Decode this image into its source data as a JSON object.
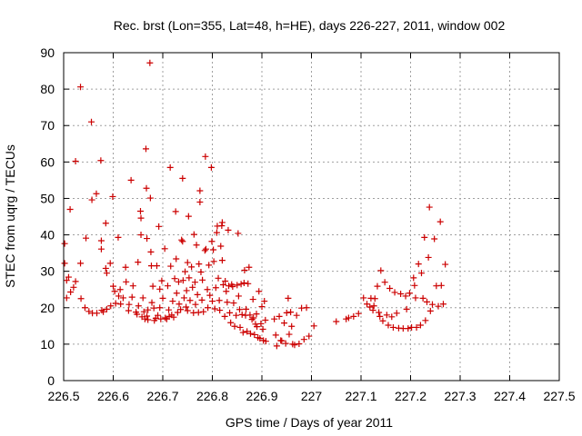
{
  "chart_data": {
    "type": "scatter",
    "title": "Rec. brst (Lon=355, Lat=48, h=HE), days 226-227, 2011, window 002",
    "xlabel": "GPS time / Days of year 2011",
    "ylabel": "STEC from uqrg / TECUs",
    "xlim": [
      226.5,
      227.5
    ],
    "ylim": [
      0,
      90
    ],
    "grid": true,
    "marker": "+",
    "color": "#cc0000",
    "xticks": [
      226.5,
      226.6,
      226.7,
      226.8,
      226.9,
      227.0,
      227.1,
      227.2,
      227.3,
      227.4,
      227.5
    ],
    "xtick_labels": [
      "226.5",
      "226.6",
      "226.7",
      "226.8",
      "226.9",
      "227",
      "227.1",
      "227.2",
      "227.3",
      "227.4",
      "227.5"
    ],
    "yticks": [
      0,
      10,
      20,
      30,
      40,
      50,
      60,
      70,
      80,
      90
    ],
    "ytick_labels": [
      "0",
      "10",
      "20",
      "30",
      "40",
      "50",
      "60",
      "70",
      "80",
      "90"
    ],
    "points": [
      [
        226.502,
        37.6
      ],
      [
        226.502,
        32.2
      ],
      [
        226.506,
        27.5
      ],
      [
        226.506,
        22.7
      ],
      [
        226.51,
        28.4
      ],
      [
        226.513,
        47.0
      ],
      [
        226.514,
        24.3
      ],
      [
        226.52,
        25.6
      ],
      [
        226.524,
        60.2
      ],
      [
        226.524,
        27.2
      ],
      [
        226.534,
        80.6
      ],
      [
        226.534,
        32.2
      ],
      [
        226.535,
        22.5
      ],
      [
        226.543,
        20.0
      ],
      [
        226.545,
        39.1
      ],
      [
        226.551,
        19.0
      ],
      [
        226.556,
        71.0
      ],
      [
        226.557,
        49.6
      ],
      [
        226.558,
        18.5
      ],
      [
        226.566,
        51.3
      ],
      [
        226.567,
        18.5
      ],
      [
        226.575,
        60.4
      ],
      [
        226.576,
        38.4
      ],
      [
        226.576,
        36.1
      ],
      [
        226.577,
        19.3
      ],
      [
        226.58,
        18.9
      ],
      [
        226.585,
        43.2
      ],
      [
        226.585,
        30.8
      ],
      [
        226.587,
        29.5
      ],
      [
        226.587,
        19.6
      ],
      [
        226.594,
        32.2
      ],
      [
        226.595,
        20.5
      ],
      [
        226.599,
        50.5
      ],
      [
        226.6,
        25.9
      ],
      [
        226.603,
        24.5
      ],
      [
        226.605,
        21.2
      ],
      [
        226.61,
        39.3
      ],
      [
        226.611,
        23.2
      ],
      [
        226.614,
        25.0
      ],
      [
        226.615,
        21.0
      ],
      [
        226.62,
        22.7
      ],
      [
        226.625,
        31.1
      ],
      [
        226.626,
        27.1
      ],
      [
        226.631,
        19.2
      ],
      [
        226.632,
        20.9
      ],
      [
        226.636,
        55.0
      ],
      [
        226.638,
        22.9
      ],
      [
        226.64,
        26.0
      ],
      [
        226.646,
        18.8
      ],
      [
        226.648,
        18.2
      ],
      [
        226.65,
        32.5
      ],
      [
        226.651,
        20.5
      ],
      [
        226.655,
        46.5
      ],
      [
        226.656,
        44.6
      ],
      [
        226.656,
        40.0
      ],
      [
        226.658,
        17.5
      ],
      [
        226.66,
        22.7
      ],
      [
        226.662,
        18.9
      ],
      [
        226.664,
        16.9
      ],
      [
        226.666,
        63.6
      ],
      [
        226.667,
        52.8
      ],
      [
        226.668,
        39.0
      ],
      [
        226.668,
        17.7
      ],
      [
        226.67,
        19.4
      ],
      [
        226.67,
        16.7
      ],
      [
        226.674,
        87.2
      ],
      [
        226.675,
        50.1
      ],
      [
        226.676,
        35.3
      ],
      [
        226.677,
        31.5
      ],
      [
        226.678,
        21.4
      ],
      [
        226.68,
        25.9
      ],
      [
        226.682,
        19.9
      ],
      [
        226.683,
        16.5
      ],
      [
        226.686,
        17.1
      ],
      [
        226.688,
        31.5
      ],
      [
        226.69,
        17.9
      ],
      [
        226.692,
        42.3
      ],
      [
        226.694,
        25.1
      ],
      [
        226.694,
        20.0
      ],
      [
        226.696,
        16.9
      ],
      [
        226.698,
        27.4
      ],
      [
        226.7,
        22.6
      ],
      [
        226.704,
        36.2
      ],
      [
        226.705,
        17.2
      ],
      [
        226.708,
        16.9
      ],
      [
        226.71,
        26.0
      ],
      [
        226.712,
        19.4
      ],
      [
        226.713,
        17.6
      ],
      [
        226.715,
        58.5
      ],
      [
        226.716,
        31.4
      ],
      [
        226.718,
        18.0
      ],
      [
        226.72,
        21.8
      ],
      [
        226.722,
        17.4
      ],
      [
        226.724,
        28.0
      ],
      [
        226.726,
        46.4
      ],
      [
        226.727,
        33.4
      ],
      [
        226.728,
        24.0
      ],
      [
        226.73,
        18.7
      ],
      [
        226.732,
        27.1
      ],
      [
        226.733,
        21.0
      ],
      [
        226.736,
        19.5
      ],
      [
        226.738,
        38.6
      ],
      [
        226.74,
        55.5
      ],
      [
        226.74,
        38.2
      ],
      [
        226.741,
        27.5
      ],
      [
        226.743,
        22.7
      ],
      [
        226.745,
        29.9
      ],
      [
        226.747,
        20.2
      ],
      [
        226.748,
        24.7
      ],
      [
        226.75,
        32.4
      ],
      [
        226.75,
        19.2
      ],
      [
        226.752,
        45.1
      ],
      [
        226.753,
        28.2
      ],
      [
        226.755,
        22.0
      ],
      [
        226.758,
        31.2
      ],
      [
        226.76,
        25.6
      ],
      [
        226.762,
        18.6
      ],
      [
        226.763,
        40.1
      ],
      [
        226.765,
        27.0
      ],
      [
        226.766,
        20.9
      ],
      [
        226.768,
        37.2
      ],
      [
        226.77,
        23.6
      ],
      [
        226.772,
        18.7
      ],
      [
        226.773,
        32.0
      ],
      [
        226.775,
        49.0
      ],
      [
        226.775,
        52.1
      ],
      [
        226.777,
        29.8
      ],
      [
        226.779,
        22.1
      ],
      [
        226.78,
        27.6
      ],
      [
        226.782,
        18.9
      ],
      [
        226.785,
        35.7
      ],
      [
        226.786,
        61.5
      ],
      [
        226.787,
        36.1
      ],
      [
        226.79,
        25.0
      ],
      [
        226.791,
        20.0
      ],
      [
        226.793,
        31.7
      ],
      [
        226.795,
        23.4
      ],
      [
        226.798,
        58.5
      ],
      [
        226.799,
        38.2
      ],
      [
        226.8,
        21.8
      ],
      [
        226.802,
        35.9
      ],
      [
        226.803,
        32.7
      ],
      [
        226.805,
        19.7
      ],
      [
        226.807,
        25.5
      ],
      [
        226.809,
        40.6
      ],
      [
        226.81,
        42.4
      ],
      [
        226.812,
        28.1
      ],
      [
        226.814,
        22.0
      ],
      [
        226.815,
        19.3
      ],
      [
        226.817,
        36.9
      ],
      [
        226.819,
        42.5
      ],
      [
        226.82,
        43.4
      ],
      [
        226.82,
        33.0
      ],
      [
        226.822,
        26.3
      ],
      [
        226.825,
        17.6
      ],
      [
        226.826,
        27.3
      ],
      [
        226.828,
        24.5
      ],
      [
        226.83,
        21.5
      ],
      [
        226.832,
        41.3
      ],
      [
        226.833,
        26.0
      ],
      [
        226.835,
        18.6
      ],
      [
        226.837,
        15.9
      ],
      [
        226.839,
        26.4
      ],
      [
        226.841,
        25.8
      ],
      [
        226.843,
        21.3
      ],
      [
        226.845,
        14.9
      ],
      [
        226.848,
        17.9
      ],
      [
        226.85,
        26.2
      ],
      [
        226.852,
        40.4
      ],
      [
        226.853,
        23.2
      ],
      [
        226.855,
        19.5
      ],
      [
        226.856,
        14.6
      ],
      [
        226.858,
        26.5
      ],
      [
        226.86,
        18.1
      ],
      [
        226.862,
        13.2
      ],
      [
        226.864,
        26.8
      ],
      [
        226.865,
        30.3
      ],
      [
        226.867,
        17.9
      ],
      [
        226.868,
        19.6
      ],
      [
        226.87,
        13.5
      ],
      [
        226.872,
        26.6
      ],
      [
        226.874,
        31.1
      ],
      [
        226.876,
        18.0
      ],
      [
        226.877,
        12.9
      ],
      [
        226.88,
        16.8
      ],
      [
        226.882,
        22.3
      ],
      [
        226.883,
        17.2
      ],
      [
        226.885,
        12.6
      ],
      [
        226.887,
        15.5
      ],
      [
        226.889,
        18.3
      ],
      [
        226.89,
        14.8
      ],
      [
        226.892,
        11.8
      ],
      [
        226.894,
        24.5
      ],
      [
        226.896,
        11.6
      ],
      [
        226.898,
        15.6
      ],
      [
        226.9,
        20.3
      ],
      [
        226.902,
        14.1
      ],
      [
        226.903,
        11.0
      ],
      [
        226.905,
        21.8
      ],
      [
        226.907,
        16.6
      ],
      [
        226.908,
        10.8
      ],
      [
        226.925,
        16.9
      ],
      [
        226.928,
        12.5
      ],
      [
        226.93,
        9.5
      ],
      [
        226.935,
        17.6
      ],
      [
        226.938,
        11.0
      ],
      [
        226.94,
        10.9
      ],
      [
        226.945,
        15.8
      ],
      [
        226.948,
        10.2
      ],
      [
        226.95,
        18.6
      ],
      [
        226.953,
        22.6
      ],
      [
        226.955,
        12.7
      ],
      [
        226.958,
        18.8
      ],
      [
        226.96,
        14.9
      ],
      [
        226.962,
        10.0
      ],
      [
        226.966,
        9.8
      ],
      [
        226.97,
        17.9
      ],
      [
        226.975,
        10.1
      ],
      [
        226.98,
        19.9
      ],
      [
        226.985,
        11.3
      ],
      [
        226.99,
        20.0
      ],
      [
        226.995,
        12.2
      ],
      [
        227.005,
        15.0
      ],
      [
        227.05,
        16.2
      ],
      [
        227.07,
        16.9
      ],
      [
        227.075,
        17.2
      ],
      [
        227.085,
        17.6
      ],
      [
        227.095,
        18.4
      ],
      [
        227.105,
        22.7
      ],
      [
        227.112,
        21.0
      ],
      [
        227.118,
        20.2
      ],
      [
        227.12,
        22.6
      ],
      [
        227.124,
        19.3
      ],
      [
        227.126,
        20.5
      ],
      [
        227.128,
        22.5
      ],
      [
        227.133,
        25.9
      ],
      [
        227.136,
        18.7
      ],
      [
        227.138,
        17.6
      ],
      [
        227.14,
        30.2
      ],
      [
        227.144,
        16.4
      ],
      [
        227.148,
        27.0
      ],
      [
        227.152,
        18.0
      ],
      [
        227.155,
        15.2
      ],
      [
        227.158,
        25.3
      ],
      [
        227.162,
        17.5
      ],
      [
        227.165,
        14.6
      ],
      [
        227.168,
        24.2
      ],
      [
        227.172,
        18.5
      ],
      [
        227.176,
        14.4
      ],
      [
        227.18,
        23.8
      ],
      [
        227.185,
        14.3
      ],
      [
        227.19,
        23.2
      ],
      [
        227.192,
        19.6
      ],
      [
        227.195,
        14.3
      ],
      [
        227.198,
        24.0
      ],
      [
        227.202,
        14.6
      ],
      [
        227.206,
        28.2
      ],
      [
        227.208,
        26.1
      ],
      [
        227.21,
        22.7
      ],
      [
        227.212,
        14.6
      ],
      [
        227.216,
        32.0
      ],
      [
        227.22,
        15.2
      ],
      [
        227.222,
        29.5
      ],
      [
        227.225,
        22.6
      ],
      [
        227.228,
        39.3
      ],
      [
        227.23,
        16.5
      ],
      [
        227.233,
        21.6
      ],
      [
        227.236,
        33.8
      ],
      [
        227.238,
        47.6
      ],
      [
        227.24,
        19.1
      ],
      [
        227.244,
        20.9
      ],
      [
        227.248,
        38.9
      ],
      [
        227.252,
        26.0
      ],
      [
        227.256,
        20.4
      ],
      [
        227.26,
        43.6
      ],
      [
        227.262,
        26.1
      ],
      [
        227.266,
        21.0
      ],
      [
        227.27,
        31.9
      ]
    ]
  }
}
